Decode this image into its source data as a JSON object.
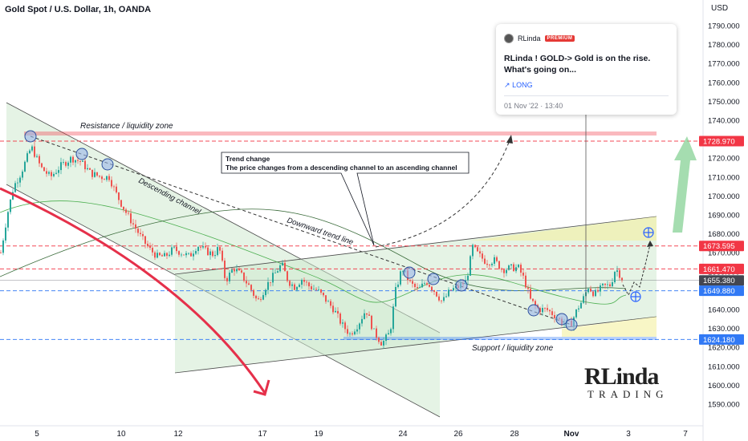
{
  "symbol_title": "Gold Spot / U.S. Dollar, 1h, OANDA",
  "currency": "USD",
  "chart_data": {
    "type": "candlestick",
    "title": "Gold Spot / U.S. Dollar, 1h, OANDA",
    "ylabel": "USD",
    "ylim": [
      1575,
      1800
    ],
    "y_ticks": [
      1590,
      1600,
      1610,
      1620,
      1630,
      1640,
      1650,
      1660,
      1670,
      1680,
      1690,
      1700,
      1710,
      1720,
      1730,
      1740,
      1750,
      1760,
      1770,
      1780,
      1790
    ],
    "y_tick_labels": [
      "1590.000",
      "1600.000",
      "1610.000",
      "1620.000",
      "1630.000",
      "1640.000",
      "1650.000",
      "1660.000",
      "1670.000",
      "1680.000",
      "1690.000",
      "1700.000",
      "1710.000",
      "1720.000",
      "1730.000",
      "1740.000",
      "1750.000",
      "1760.000",
      "1770.000",
      "1780.000",
      "1790.000"
    ],
    "x_tick_labels": [
      "5",
      "10",
      "12",
      "17",
      "19",
      "24",
      "26",
      "28",
      "Nov",
      "3",
      "7"
    ],
    "price_labels": [
      {
        "value": 1728.97,
        "text": "1728.970",
        "color": "#f23645"
      },
      {
        "value": 1673.595,
        "text": "1673.595",
        "color": "#f23645"
      },
      {
        "value": 1661.47,
        "text": "1661.470",
        "color": "#f23645"
      },
      {
        "value": 1655.38,
        "text": "1655.380",
        "color": "#434651"
      },
      {
        "value": 1649.88,
        "text": "1649.880",
        "color": "#3179f5"
      },
      {
        "value": 1624.18,
        "text": "1624.180",
        "color": "#3179f5"
      }
    ],
    "close_path": [
      {
        "x": 0,
        "y": 1670
      },
      {
        "x": 8,
        "y": 1690
      },
      {
        "x": 16,
        "y": 1705
      },
      {
        "x": 25,
        "y": 1712
      },
      {
        "x": 38,
        "y": 1726
      },
      {
        "x": 50,
        "y": 1715
      },
      {
        "x": 62,
        "y": 1710
      },
      {
        "x": 75,
        "y": 1716
      },
      {
        "x": 88,
        "y": 1720
      },
      {
        "x": 100,
        "y": 1718
      },
      {
        "x": 112,
        "y": 1712
      },
      {
        "x": 125,
        "y": 1710
      },
      {
        "x": 135,
        "y": 1710
      },
      {
        "x": 145,
        "y": 1700
      },
      {
        "x": 155,
        "y": 1692
      },
      {
        "x": 165,
        "y": 1685
      },
      {
        "x": 175,
        "y": 1678
      },
      {
        "x": 185,
        "y": 1672
      },
      {
        "x": 195,
        "y": 1668
      },
      {
        "x": 205,
        "y": 1668
      },
      {
        "x": 215,
        "y": 1672
      },
      {
        "x": 225,
        "y": 1670
      },
      {
        "x": 235,
        "y": 1668
      },
      {
        "x": 245,
        "y": 1674
      },
      {
        "x": 255,
        "y": 1671
      },
      {
        "x": 265,
        "y": 1669
      },
      {
        "x": 272,
        "y": 1673
      },
      {
        "x": 280,
        "y": 1655
      },
      {
        "x": 290,
        "y": 1662
      },
      {
        "x": 300,
        "y": 1658
      },
      {
        "x": 310,
        "y": 1652
      },
      {
        "x": 320,
        "y": 1644
      },
      {
        "x": 330,
        "y": 1652
      },
      {
        "x": 340,
        "y": 1658
      },
      {
        "x": 350,
        "y": 1664
      },
      {
        "x": 358,
        "y": 1655
      },
      {
        "x": 366,
        "y": 1652
      },
      {
        "x": 375,
        "y": 1656
      },
      {
        "x": 385,
        "y": 1652
      },
      {
        "x": 395,
        "y": 1650
      },
      {
        "x": 405,
        "y": 1645
      },
      {
        "x": 415,
        "y": 1640
      },
      {
        "x": 425,
        "y": 1632
      },
      {
        "x": 435,
        "y": 1627
      },
      {
        "x": 445,
        "y": 1632
      },
      {
        "x": 455,
        "y": 1640
      },
      {
        "x": 465,
        "y": 1628
      },
      {
        "x": 475,
        "y": 1622
      },
      {
        "x": 485,
        "y": 1628
      },
      {
        "x": 492,
        "y": 1650
      },
      {
        "x": 500,
        "y": 1662
      },
      {
        "x": 510,
        "y": 1654
      },
      {
        "x": 520,
        "y": 1650
      },
      {
        "x": 530,
        "y": 1655
      },
      {
        "x": 540,
        "y": 1650
      },
      {
        "x": 550,
        "y": 1644
      },
      {
        "x": 560,
        "y": 1650
      },
      {
        "x": 570,
        "y": 1652
      },
      {
        "x": 580,
        "y": 1655
      },
      {
        "x": 588,
        "y": 1673
      },
      {
        "x": 595,
        "y": 1669
      },
      {
        "x": 605,
        "y": 1665
      },
      {
        "x": 615,
        "y": 1666
      },
      {
        "x": 625,
        "y": 1661
      },
      {
        "x": 635,
        "y": 1662
      },
      {
        "x": 645,
        "y": 1662
      },
      {
        "x": 652,
        "y": 1656
      },
      {
        "x": 660,
        "y": 1645
      },
      {
        "x": 670,
        "y": 1640
      },
      {
        "x": 680,
        "y": 1640
      },
      {
        "x": 690,
        "y": 1637
      },
      {
        "x": 700,
        "y": 1633
      },
      {
        "x": 710,
        "y": 1632
      },
      {
        "x": 718,
        "y": 1640
      },
      {
        "x": 725,
        "y": 1645
      },
      {
        "x": 732,
        "y": 1652
      },
      {
        "x": 740,
        "y": 1648
      },
      {
        "x": 750,
        "y": 1652
      },
      {
        "x": 760,
        "y": 1653
      },
      {
        "x": 766,
        "y": 1662
      },
      {
        "x": 772,
        "y": 1658
      },
      {
        "x": 776,
        "y": 1655
      }
    ],
    "levels": [
      {
        "name": "Resistance / liquidity zone",
        "value": 1728.97
      },
      {
        "name": "Support / liquidity zone",
        "value": 1624.18
      }
    ]
  },
  "annotations": {
    "resistance_label": "Resistance / liquidity zone",
    "support_label": "Support / liquidity zone",
    "descending_label": "Descending channel",
    "downtrend_label": "Downward trend line",
    "callout_title": "Trend change",
    "callout_body": "The price changes from a descending channel to an ascending channel"
  },
  "idea_card": {
    "author": "RLinda",
    "badge": "PREMIUM",
    "title": "RLinda ! GOLD-> Gold is on the rise. What's going on...",
    "tag": "LONG",
    "tag_icon": "arrow-up-right-icon",
    "date": "01 Nov '22 · 13:40"
  },
  "logo": {
    "line1": "RLinda",
    "line2": "TRADING"
  },
  "colors": {
    "resistance": "#f23645",
    "support": "#3179f5",
    "up_candle": "#26a69a",
    "down_candle": "#ef5350",
    "arrow_red": "#e5304a",
    "arrow_green": "#7fcf8e"
  }
}
